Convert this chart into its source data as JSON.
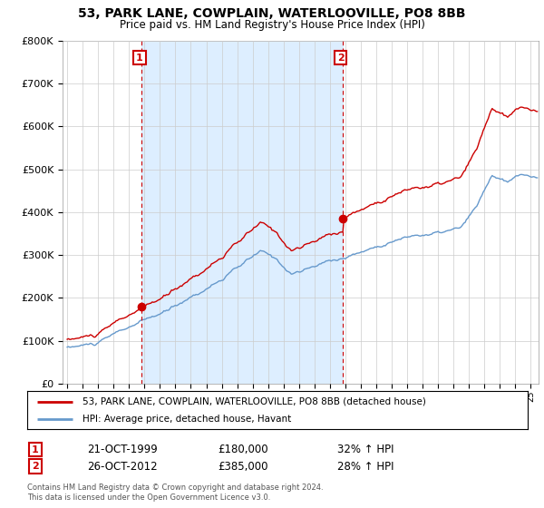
{
  "title": "53, PARK LANE, COWPLAIN, WATERLOOVILLE, PO8 8BB",
  "subtitle": "Price paid vs. HM Land Registry's House Price Index (HPI)",
  "legend_line1": "53, PARK LANE, COWPLAIN, WATERLOOVILLE, PO8 8BB (detached house)",
  "legend_line2": "HPI: Average price, detached house, Havant",
  "annotation1_date": "21-OCT-1999",
  "annotation1_price": "£180,000",
  "annotation1_hpi": "32% ↑ HPI",
  "annotation2_date": "26-OCT-2012",
  "annotation2_price": "£385,000",
  "annotation2_hpi": "28% ↑ HPI",
  "red_color": "#cc0000",
  "blue_color": "#6699cc",
  "shade_color": "#ddeeff",
  "grid_color": "#cccccc",
  "bg_color": "#ffffff",
  "footer": "Contains HM Land Registry data © Crown copyright and database right 2024.\nThis data is licensed under the Open Government Licence v3.0."
}
